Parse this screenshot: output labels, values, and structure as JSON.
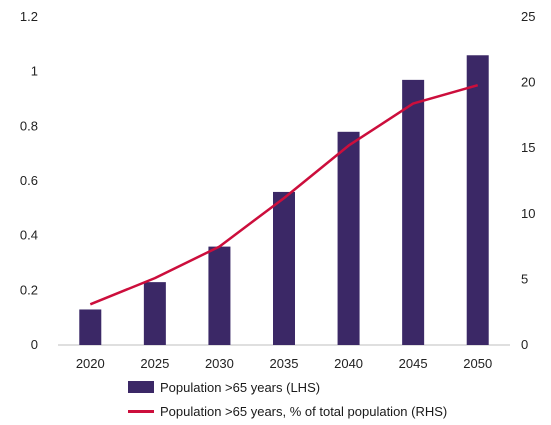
{
  "chart_data": {
    "type": "bar",
    "categories": [
      "2020",
      "2025",
      "2030",
      "2035",
      "2040",
      "2045",
      "2050"
    ],
    "series": [
      {
        "name": "Population >65 years (LHS)",
        "type": "bar",
        "axis": "left",
        "values": [
          0.13,
          0.23,
          0.36,
          0.56,
          0.78,
          0.97,
          1.06
        ]
      },
      {
        "name": "Population >65 years, % of total population (RHS)",
        "type": "line",
        "axis": "right",
        "values": [
          3.1,
          5.1,
          7.5,
          11.2,
          15.2,
          18.4,
          19.8
        ]
      }
    ],
    "left_axis": {
      "ylim": [
        0,
        1.2
      ],
      "ticks": [
        "0",
        "0.2",
        "0.4",
        "0.6",
        "0.8",
        "1",
        "1.2"
      ]
    },
    "right_axis": {
      "ylim": [
        0,
        25
      ],
      "ticks": [
        "0",
        "5",
        "10",
        "15",
        "20",
        "25"
      ]
    },
    "grid": false,
    "legend_position": "bottom",
    "colors": {
      "bar": "#3b2866",
      "line": "#cc0e3c",
      "axis": "#bfbfbf"
    }
  }
}
